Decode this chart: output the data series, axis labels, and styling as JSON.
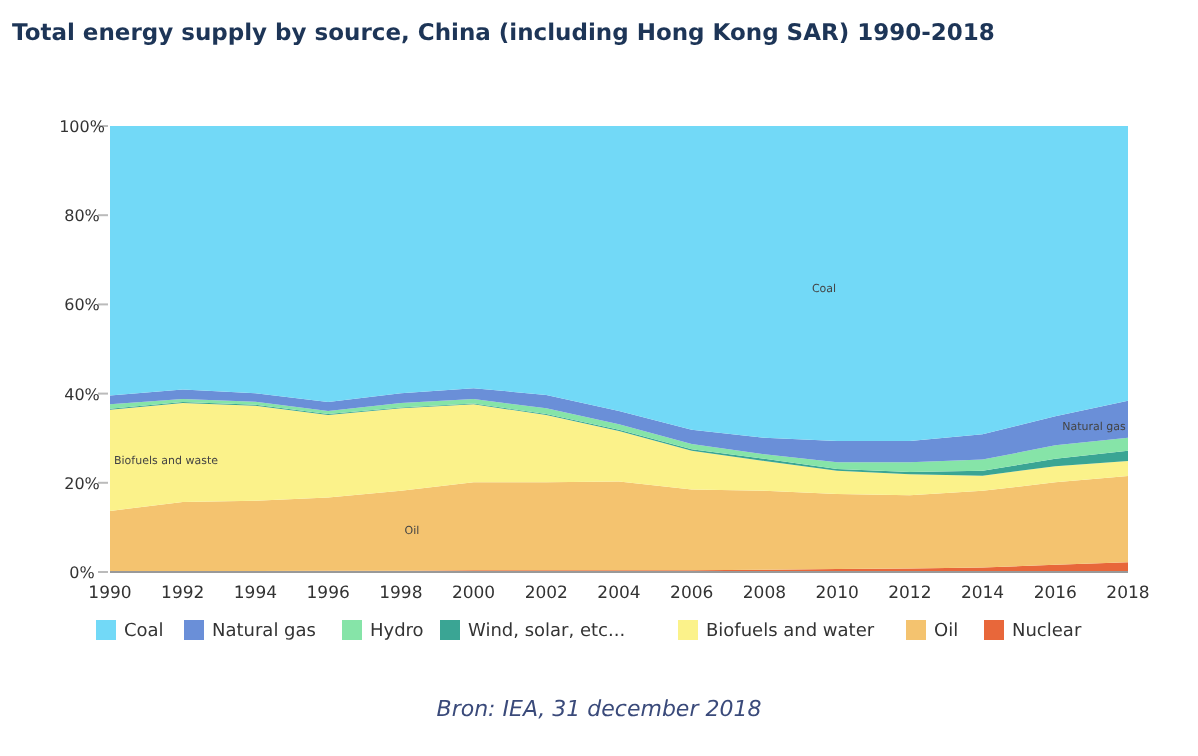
{
  "chart_data": {
    "type": "area",
    "stacked": true,
    "title": "Total energy supply by source, China (including Hong Kong SAR) 1990-2018",
    "x": [
      1990,
      1992,
      1994,
      1996,
      1998,
      2000,
      2002,
      2004,
      2006,
      2008,
      2010,
      2012,
      2014,
      2016,
      2018
    ],
    "series": [
      {
        "name": "Nuclear",
        "color": "#e8673a",
        "values": [
          0,
          0,
          0.2,
          0.3,
          0.3,
          0.4,
          0.4,
          0.4,
          0.4,
          0.5,
          0.7,
          0.8,
          1.0,
          1.6,
          2.2
        ]
      },
      {
        "name": "Oil",
        "color": "#f4c36f",
        "values": [
          13.7,
          15.7,
          15.8,
          16.4,
          17.9,
          19.7,
          19.7,
          19.9,
          18.1,
          17.7,
          16.8,
          16.4,
          17.2,
          18.5,
          19.3
        ]
      },
      {
        "name": "Biofuels and water",
        "color": "#fbf28a",
        "values": [
          22.7,
          22.2,
          21.3,
          18.5,
          18.5,
          17.5,
          15.1,
          11.3,
          8.7,
          6.7,
          5.2,
          4.7,
          3.4,
          3.6,
          3.4
        ]
      },
      {
        "name": "Wind, solar, etc...",
        "color": "#3aa594",
        "values": [
          0.2,
          0.2,
          0.2,
          0.2,
          0.2,
          0.2,
          0.2,
          0.3,
          0.3,
          0.5,
          0.4,
          0.5,
          1.1,
          1.7,
          2.3
        ]
      },
      {
        "name": "Hydro",
        "color": "#86e4a8",
        "values": [
          1.0,
          0.7,
          0.7,
          0.7,
          1.0,
          1.0,
          1.3,
          1.2,
          1.2,
          1.0,
          1.5,
          2.2,
          2.5,
          3.0,
          2.9
        ]
      },
      {
        "name": "Natural gas",
        "color": "#6a8fd8",
        "values": [
          2.0,
          2.1,
          1.9,
          2.0,
          2.2,
          2.4,
          3.0,
          3.0,
          3.2,
          3.7,
          4.8,
          4.8,
          5.7,
          6.5,
          8.3
        ]
      },
      {
        "name": "Coal",
        "color": "#72d9f7",
        "values": [
          60.4,
          59.1,
          59.9,
          61.9,
          59.9,
          58.8,
          60.3,
          63.9,
          68.1,
          69.9,
          70.6,
          70.6,
          69.1,
          65.1,
          61.6
        ]
      }
    ],
    "xlim": [
      1990,
      2018
    ],
    "xticks": [
      1990,
      1992,
      1994,
      1996,
      1998,
      2000,
      2002,
      2004,
      2006,
      2008,
      2010,
      2012,
      2014,
      2016,
      2018
    ],
    "ylim": [
      0,
      100
    ],
    "yticks": [
      {
        "value": 0,
        "label": "0%"
      },
      {
        "value": 20,
        "label": "20%"
      },
      {
        "value": 40,
        "label": "40%"
      },
      {
        "value": 60,
        "label": "60%"
      },
      {
        "value": 80,
        "label": "80%"
      },
      {
        "value": 100,
        "label": "100%"
      }
    ],
    "legend": "bottom",
    "annotations": [
      "Coal",
      "Natural gas",
      "Biofuels and waste",
      "Oil",
      "Bron: IEA, 31 december 2018"
    ]
  }
}
